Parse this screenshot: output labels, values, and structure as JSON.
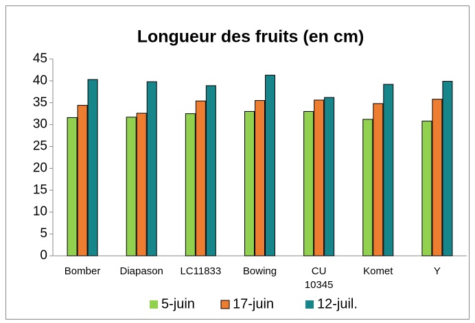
{
  "chart_data": {
    "type": "bar",
    "title": "Longueur des fruits (en cm)",
    "categories": [
      "Bomber",
      "Diapason",
      "LC11833",
      "Bowing",
      "CU\n10345",
      "Komet",
      "Y"
    ],
    "series": [
      {
        "name": "5-juin",
        "color": "#92d050",
        "values": [
          31.6,
          31.7,
          32.5,
          33.0,
          33.0,
          31.2,
          30.8
        ]
      },
      {
        "name": "17-juin",
        "color": "#ed7d31",
        "values": [
          34.4,
          32.6,
          35.4,
          35.5,
          35.6,
          34.8,
          35.8
        ]
      },
      {
        "name": "12-juil.",
        "color": "#17868a",
        "values": [
          40.3,
          39.8,
          38.9,
          41.3,
          36.2,
          39.2,
          39.9
        ]
      }
    ],
    "ylim": [
      0,
      45
    ],
    "yticks": [
      0,
      5,
      10,
      15,
      20,
      25,
      30,
      35,
      40,
      45
    ],
    "grid": false,
    "legend": "bottom"
  }
}
